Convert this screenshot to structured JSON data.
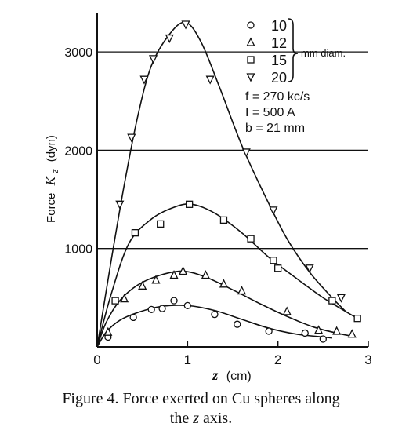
{
  "chart_data": {
    "type": "scatter",
    "x_axis": {
      "label_var": "z",
      "label_unit": "(cm)",
      "range": [
        0,
        3
      ],
      "ticks": [
        0,
        1,
        2,
        3
      ]
    },
    "y_axis": {
      "label_main": "Force",
      "label_var": "K",
      "label_sub": "z",
      "label_unit": "(dyn)",
      "range": [
        0,
        3400
      ],
      "ticks": [
        1000,
        2000,
        3000
      ]
    },
    "grid": "horizontal lines at 1000, 2000, 3000",
    "legend": {
      "unit_text": "mm diam.",
      "entries": [
        {
          "label": "10",
          "marker": "circle"
        },
        {
          "label": "12",
          "marker": "triangle-up"
        },
        {
          "label": "15",
          "marker": "square"
        },
        {
          "label": "20",
          "marker": "triangle-down"
        }
      ]
    },
    "params": [
      "f = 270 kc/s",
      "I = 500 A",
      "b = 21 mm"
    ],
    "series": [
      {
        "name": "10",
        "marker": "circle",
        "points": [
          [
            0.12,
            100
          ],
          [
            0.4,
            300
          ],
          [
            0.6,
            380
          ],
          [
            0.72,
            390
          ],
          [
            0.85,
            470
          ],
          [
            1.0,
            420
          ],
          [
            1.3,
            330
          ],
          [
            1.55,
            230
          ],
          [
            1.9,
            160
          ],
          [
            2.3,
            140
          ],
          [
            2.5,
            80
          ]
        ],
        "curve": [
          [
            0,
            0
          ],
          [
            0.1,
            150
          ],
          [
            0.25,
            270
          ],
          [
            0.45,
            350
          ],
          [
            0.7,
            410
          ],
          [
            1.0,
            420
          ],
          [
            1.3,
            370
          ],
          [
            1.6,
            280
          ],
          [
            1.9,
            190
          ],
          [
            2.2,
            130
          ],
          [
            2.5,
            100
          ],
          [
            2.6,
            90
          ]
        ]
      },
      {
        "name": "12",
        "marker": "triangle-up",
        "points": [
          [
            0.12,
            150
          ],
          [
            0.3,
            490
          ],
          [
            0.5,
            620
          ],
          [
            0.65,
            680
          ],
          [
            0.85,
            730
          ],
          [
            0.95,
            770
          ],
          [
            1.2,
            730
          ],
          [
            1.4,
            640
          ],
          [
            1.6,
            570
          ],
          [
            2.1,
            360
          ],
          [
            2.45,
            170
          ],
          [
            2.65,
            160
          ],
          [
            2.82,
            130
          ]
        ],
        "curve": [
          [
            0,
            0
          ],
          [
            0.1,
            250
          ],
          [
            0.25,
            470
          ],
          [
            0.45,
            630
          ],
          [
            0.7,
            730
          ],
          [
            0.95,
            770
          ],
          [
            1.2,
            710
          ],
          [
            1.5,
            580
          ],
          [
            1.8,
            440
          ],
          [
            2.1,
            310
          ],
          [
            2.4,
            200
          ],
          [
            2.7,
            130
          ],
          [
            2.82,
            110
          ]
        ]
      },
      {
        "name": "15",
        "marker": "square",
        "points": [
          [
            0.2,
            470
          ],
          [
            0.42,
            1160
          ],
          [
            0.7,
            1250
          ],
          [
            1.02,
            1450
          ],
          [
            1.4,
            1290
          ],
          [
            1.7,
            1100
          ],
          [
            1.95,
            880
          ],
          [
            2.0,
            800
          ],
          [
            2.6,
            470
          ],
          [
            2.88,
            290
          ]
        ],
        "curve": [
          [
            0,
            0
          ],
          [
            0.15,
            520
          ],
          [
            0.35,
            1050
          ],
          [
            0.6,
            1300
          ],
          [
            0.85,
            1420
          ],
          [
            1.05,
            1450
          ],
          [
            1.3,
            1360
          ],
          [
            1.6,
            1160
          ],
          [
            1.9,
            910
          ],
          [
            2.2,
            700
          ],
          [
            2.5,
            500
          ],
          [
            2.75,
            360
          ],
          [
            2.88,
            290
          ]
        ]
      },
      {
        "name": "20",
        "marker": "triangle-down",
        "points": [
          [
            0.25,
            1450
          ],
          [
            0.38,
            2130
          ],
          [
            0.52,
            2720
          ],
          [
            0.62,
            2930
          ],
          [
            0.8,
            3140
          ],
          [
            0.98,
            3280
          ],
          [
            1.25,
            2720
          ],
          [
            1.65,
            1980
          ],
          [
            1.95,
            1390
          ],
          [
            2.35,
            800
          ],
          [
            2.7,
            500
          ]
        ],
        "curve": [
          [
            0,
            0
          ],
          [
            0.15,
            850
          ],
          [
            0.3,
            1650
          ],
          [
            0.45,
            2350
          ],
          [
            0.6,
            2860
          ],
          [
            0.8,
            3180
          ],
          [
            0.98,
            3300
          ],
          [
            1.15,
            3100
          ],
          [
            1.35,
            2650
          ],
          [
            1.6,
            2050
          ],
          [
            1.85,
            1550
          ],
          [
            2.1,
            1100
          ],
          [
            2.35,
            760
          ],
          [
            2.6,
            500
          ],
          [
            2.75,
            360
          ]
        ]
      }
    ]
  },
  "caption": {
    "line1": "Figure 4.  Force exerted on Cu spheres along",
    "line2_prefix": "the ",
    "line2_var": "z",
    "line2_suffix": " axis."
  }
}
